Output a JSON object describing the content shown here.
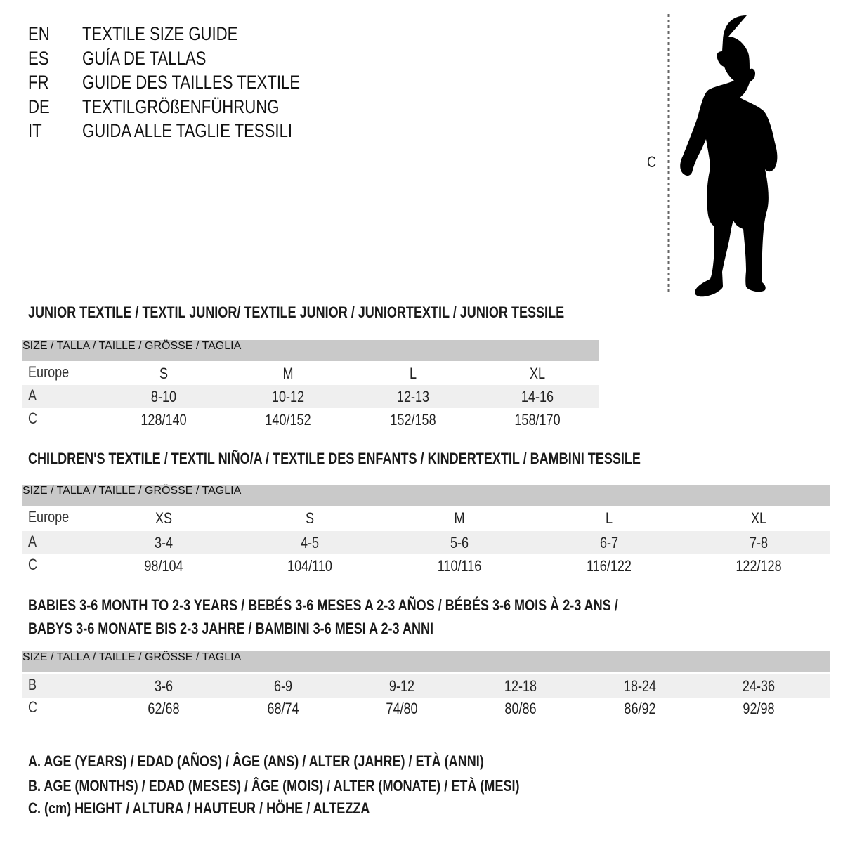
{
  "titles": [
    {
      "code": "EN",
      "text": "TEXTILE SIZE GUIDE"
    },
    {
      "code": "ES",
      "text": "GUÍA DE TALLAS"
    },
    {
      "code": "FR",
      "text": "GUIDE DES TAILLES TEXTILE"
    },
    {
      "code": "DE",
      "text": "TEXTILGRÖßENFÜHRUNG"
    },
    {
      "code": "IT",
      "text": "GUIDA ALLE TAGLIE TESSILI"
    }
  ],
  "figure": {
    "measure_label": "C",
    "icon": "child-silhouette"
  },
  "colors": {
    "header_bar": "#c9c9c9",
    "shaded_row": "#efefef"
  },
  "sections": [
    {
      "title": "JUNIOR TEXTILE / TEXTIL JUNIOR/ TEXTILE JUNIOR / JUNIORTEXTIL / JUNIOR TESSILE",
      "header": "SIZE / TALLA / TAILLE / GRÖSSE / TAGLIA",
      "rows": [
        {
          "label": "Europe",
          "values": [
            "S",
            "M",
            "L",
            "XL"
          ]
        },
        {
          "label": "A",
          "values": [
            "8-10",
            "10-12",
            "12-13",
            "14-16"
          ]
        },
        {
          "label": "C",
          "values": [
            "128/140",
            "140/152",
            "152/158",
            "158/170"
          ]
        }
      ]
    },
    {
      "title": "CHILDREN'S TEXTILE / TEXTIL NIÑO/A / TEXTILE DES ENFANTS / KINDERTEXTIL / BAMBINI TESSILE",
      "header": "SIZE / TALLA / TAILLE / GRÖSSE / TAGLIA",
      "rows": [
        {
          "label": "Europe",
          "values": [
            "XS",
            "S",
            "M",
            "L",
            "XL"
          ]
        },
        {
          "label": "A",
          "values": [
            "3-4",
            "4-5",
            "5-6",
            "6-7",
            "7-8"
          ]
        },
        {
          "label": "C",
          "values": [
            "98/104",
            "104/110",
            "110/116",
            "116/122",
            "122/128"
          ]
        }
      ]
    },
    {
      "title": "BABIES 3-6 MONTH TO 2-3 YEARS / BEBÉS 3-6 MESES A 2-3 AÑOS / BÉBÉS 3-6 MOIS À 2-3 ANS /",
      "title2": "BABYS 3-6 MONATE BIS 2-3 JAHRE / BAMBINI 3-6 MESI A 2-3 ANNI",
      "header": "SIZE / TALLA / TAILLE / GRÖSSE / TAGLIA",
      "rows": [
        {
          "label": "B",
          "values": [
            "3-6",
            "6-9",
            "9-12",
            "12-18",
            "18-24",
            "24-36"
          ]
        },
        {
          "label": "C",
          "values": [
            "62/68",
            "68/74",
            "74/80",
            "80/86",
            "86/92",
            "92/98"
          ]
        }
      ]
    }
  ],
  "legend": [
    "A. AGE (YEARS) / EDAD (AÑOS) / ÂGE (ANS) / ALTER (JAHRE) / ETÀ (ANNI)",
    "B. AGE (MONTHS) / EDAD (MESES) / ÂGE (MOIS) / ALTER (MONATE) / ETÀ (MESI)",
    "C. (cm) HEIGHT / ALTURA / HAUTEUR / HÖHE / ALTEZZA"
  ]
}
